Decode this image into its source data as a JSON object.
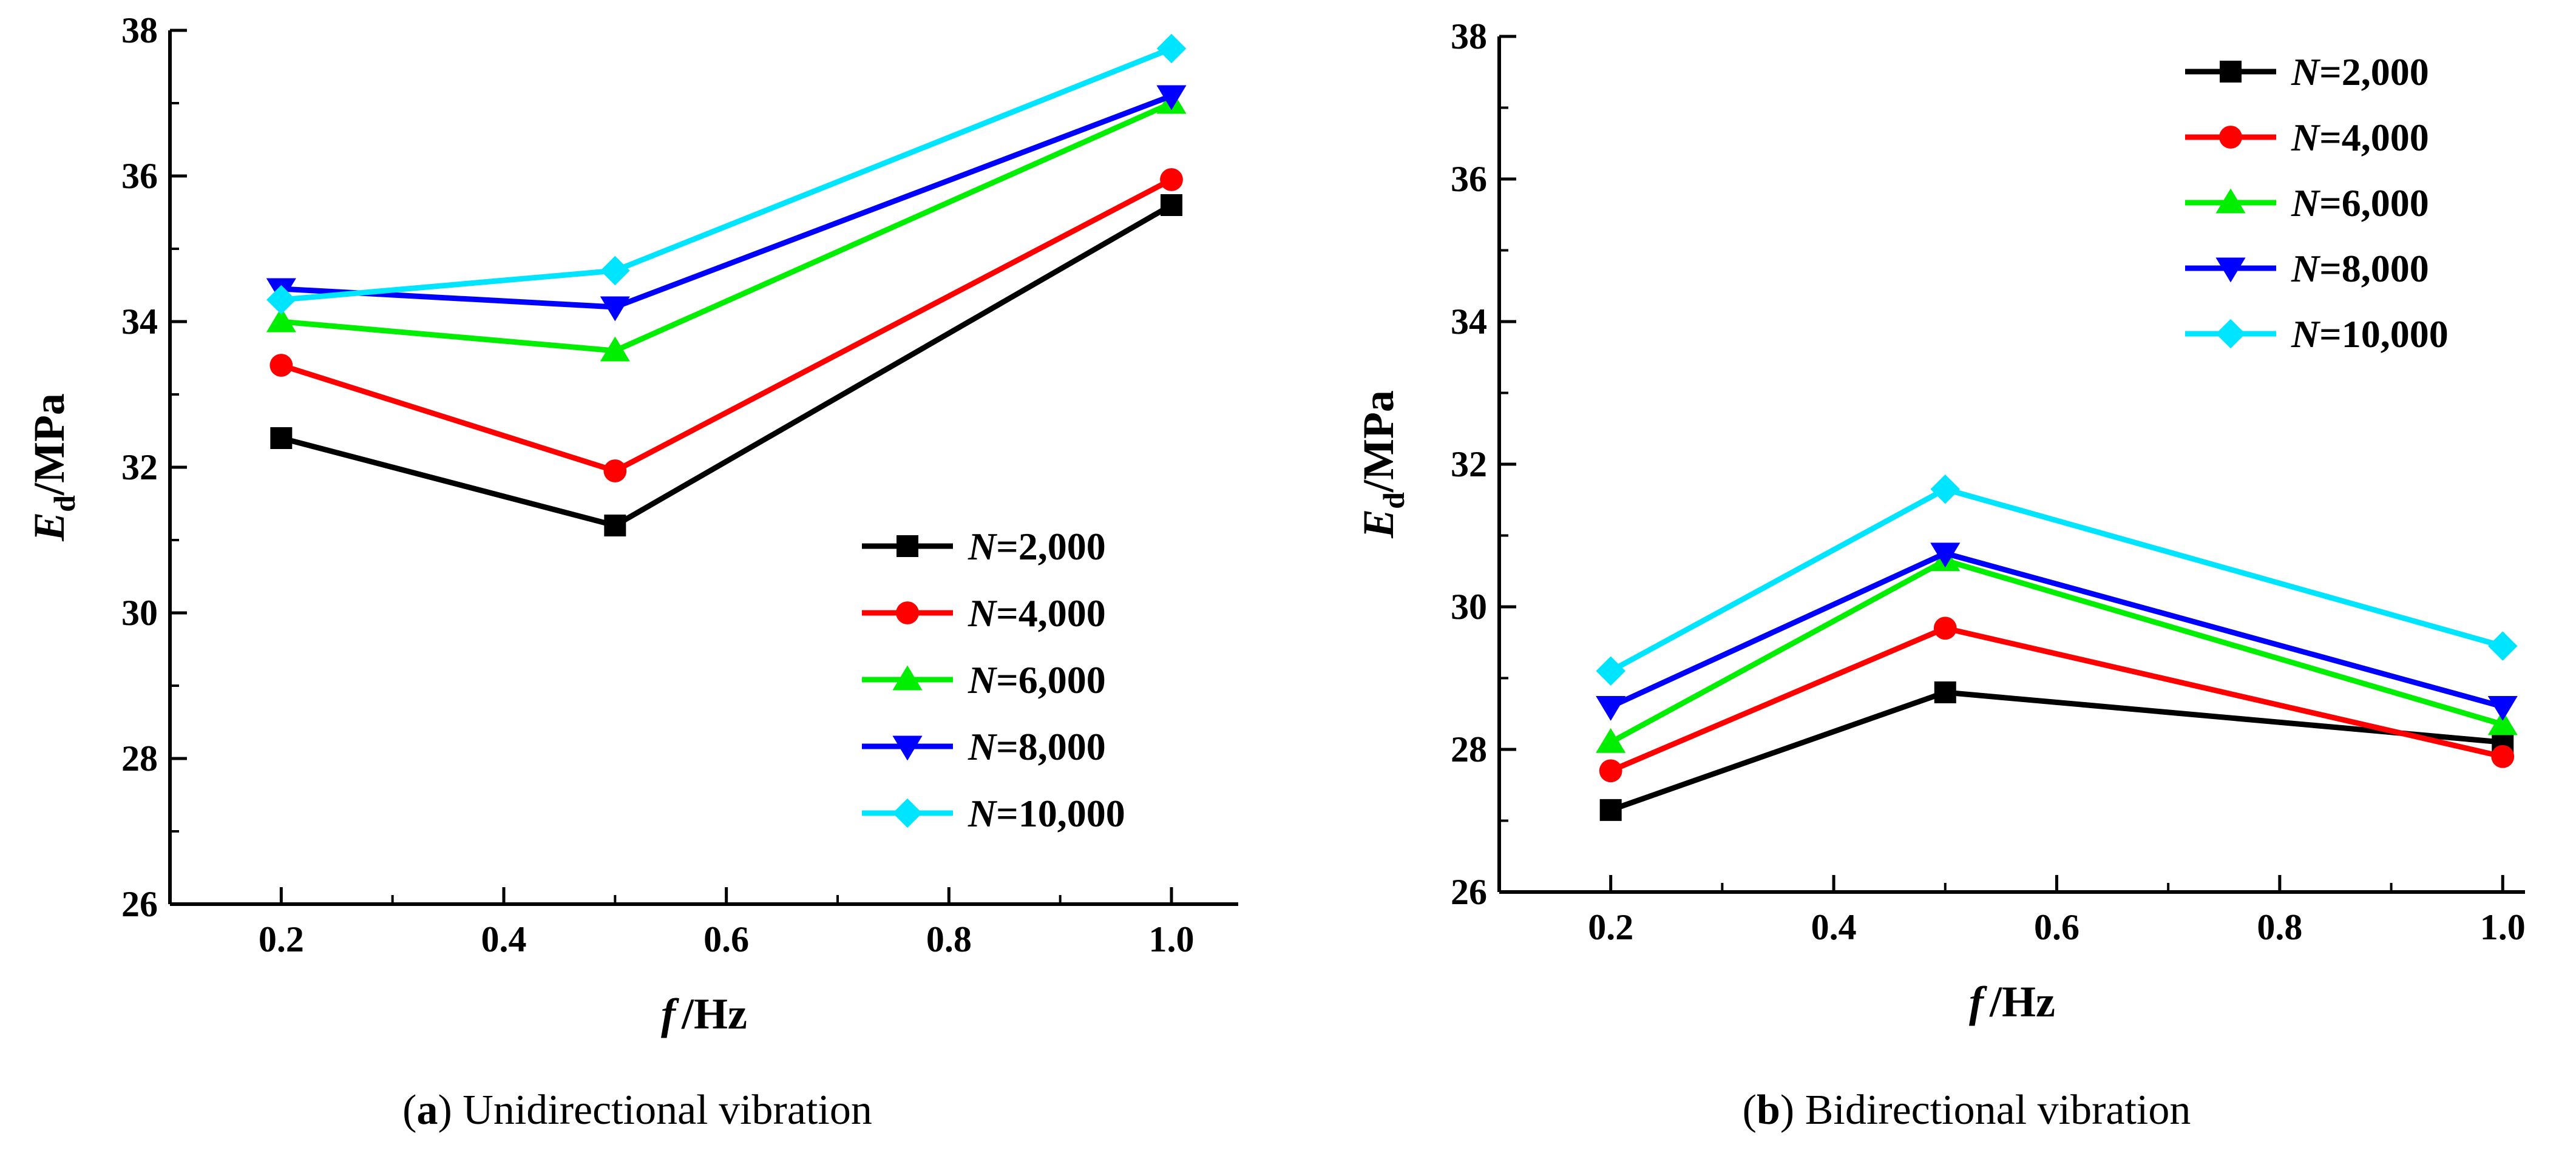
{
  "chart_data": [
    {
      "type": "line",
      "panel": "a",
      "caption_letter": "a",
      "caption_text": "Unidirectional vibration",
      "xlabel_var": "f",
      "xlabel_unit": "/Hz",
      "ylabel_var": "E",
      "ylabel_sub": "d",
      "ylabel_unit": "/MPa",
      "xlim": [
        0.1,
        1.06
      ],
      "ylim": [
        26,
        38
      ],
      "xticks": [
        0.2,
        0.4,
        0.6,
        0.8,
        1.0
      ],
      "xtick_labels": [
        "0.2",
        "0.4",
        "0.6",
        "0.8",
        "1.0"
      ],
      "yticks": [
        26,
        28,
        30,
        32,
        34,
        36,
        38
      ],
      "ytick_labels": [
        "26",
        "28",
        "30",
        "32",
        "34",
        "36",
        "38"
      ],
      "legend_position": "bottom-right",
      "x": [
        0.2,
        0.5,
        1.0
      ],
      "series": [
        {
          "name_var": "N",
          "name_val": "=2,000",
          "color": "#000000",
          "marker": "square",
          "values": [
            32.4,
            31.2,
            35.6
          ]
        },
        {
          "name_var": "N",
          "name_val": "=4,000",
          "color": "#ff0000",
          "marker": "circle",
          "values": [
            33.4,
            31.95,
            35.95
          ]
        },
        {
          "name_var": "N",
          "name_val": "=6,000",
          "color": "#00ee00",
          "marker": "triangle-up",
          "values": [
            34.0,
            33.6,
            37.0
          ]
        },
        {
          "name_var": "N",
          "name_val": "=8,000",
          "color": "#0000ff",
          "marker": "triangle-down",
          "values": [
            34.45,
            34.2,
            37.1
          ]
        },
        {
          "name_var": "N",
          "name_val": "=10,000",
          "color": "#00e5ff",
          "marker": "diamond",
          "values": [
            34.3,
            34.7,
            37.75
          ]
        }
      ]
    },
    {
      "type": "line",
      "panel": "b",
      "caption_letter": "b",
      "caption_text": "Bidirectional vibration",
      "xlabel_var": "f",
      "xlabel_unit": "/Hz",
      "ylabel_var": "E",
      "ylabel_sub": "d",
      "ylabel_unit": "/MPa",
      "xlim": [
        0.1,
        1.02
      ],
      "ylim": [
        26,
        38
      ],
      "xticks": [
        0.2,
        0.4,
        0.6,
        0.8,
        1.0
      ],
      "xtick_labels": [
        "0.2",
        "0.4",
        "0.6",
        "0.8",
        "1.0"
      ],
      "yticks": [
        26,
        28,
        30,
        32,
        34,
        36,
        38
      ],
      "ytick_labels": [
        "26",
        "28",
        "30",
        "32",
        "34",
        "36",
        "38"
      ],
      "legend_position": "top-right",
      "x": [
        0.2,
        0.5,
        1.0
      ],
      "series": [
        {
          "name_var": "N",
          "name_val": "=2,000",
          "color": "#000000",
          "marker": "square",
          "values": [
            27.15,
            28.8,
            28.1
          ]
        },
        {
          "name_var": "N",
          "name_val": "=4,000",
          "color": "#ff0000",
          "marker": "circle",
          "values": [
            27.7,
            29.7,
            27.9
          ]
        },
        {
          "name_var": "N",
          "name_val": "=6,000",
          "color": "#00ee00",
          "marker": "triangle-up",
          "values": [
            28.1,
            30.65,
            28.35
          ]
        },
        {
          "name_var": "N",
          "name_val": "=8,000",
          "color": "#0000ff",
          "marker": "triangle-down",
          "values": [
            28.6,
            30.75,
            28.6
          ]
        },
        {
          "name_var": "N",
          "name_val": "=10,000",
          "color": "#00e5ff",
          "marker": "diamond",
          "values": [
            29.1,
            31.65,
            29.45
          ]
        }
      ]
    }
  ]
}
